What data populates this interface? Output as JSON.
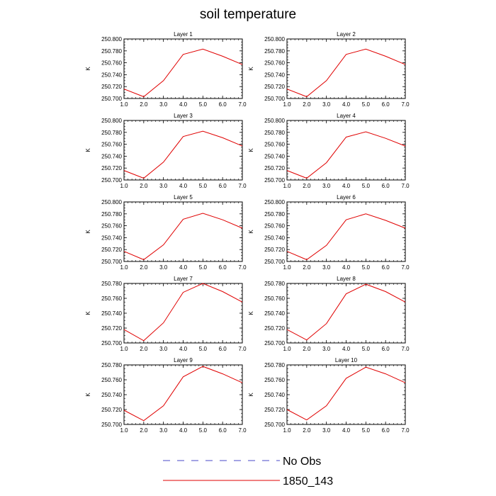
{
  "title": "soil temperature",
  "legend": [
    {
      "label": "No Obs",
      "color": "#4a4ac8",
      "style": "dashed"
    },
    {
      "label": "1850_143",
      "color": "#e00000",
      "style": "solid"
    }
  ],
  "chart_data": [
    {
      "type": "line",
      "title": "Layer 1",
      "xlabel": "",
      "ylabel": "K",
      "xlim": [
        1,
        7
      ],
      "ylim": [
        250.7,
        250.8
      ],
      "xticks": [
        "1.0",
        "2.0",
        "3.0",
        "4.0",
        "5.0",
        "6.0",
        "7.0"
      ],
      "yticks": [
        "250.700",
        "250.720",
        "250.740",
        "250.760",
        "250.780",
        "250.800"
      ],
      "x": [
        1,
        2,
        3,
        4,
        5,
        6,
        7
      ],
      "series": [
        {
          "name": "1850_143",
          "color": "#e00000",
          "values": [
            250.716,
            250.703,
            250.73,
            250.774,
            250.783,
            250.771,
            250.757
          ]
        }
      ]
    },
    {
      "type": "line",
      "title": "Layer 2",
      "xlabel": "",
      "ylabel": "K",
      "xlim": [
        1,
        7
      ],
      "ylim": [
        250.7,
        250.8
      ],
      "xticks": [
        "1.0",
        "2.0",
        "3.0",
        "4.0",
        "5.0",
        "6.0",
        "7.0"
      ],
      "yticks": [
        "250.700",
        "250.720",
        "250.740",
        "250.760",
        "250.780",
        "250.800"
      ],
      "x": [
        1,
        2,
        3,
        4,
        5,
        6,
        7
      ],
      "series": [
        {
          "name": "1850_143",
          "color": "#e00000",
          "values": [
            250.716,
            250.703,
            250.73,
            250.774,
            250.783,
            250.771,
            250.757
          ]
        }
      ]
    },
    {
      "type": "line",
      "title": "Layer 3",
      "xlabel": "",
      "ylabel": "K",
      "xlim": [
        1,
        7
      ],
      "ylim": [
        250.7,
        250.8
      ],
      "xticks": [
        "1.0",
        "2.0",
        "3.0",
        "4.0",
        "5.0",
        "6.0",
        "7.0"
      ],
      "yticks": [
        "250.700",
        "250.720",
        "250.740",
        "250.760",
        "250.780",
        "250.800"
      ],
      "x": [
        1,
        2,
        3,
        4,
        5,
        6,
        7
      ],
      "series": [
        {
          "name": "1850_143",
          "color": "#e00000",
          "values": [
            250.716,
            250.703,
            250.73,
            250.773,
            250.782,
            250.771,
            250.757
          ]
        }
      ]
    },
    {
      "type": "line",
      "title": "Layer 4",
      "xlabel": "",
      "ylabel": "K",
      "xlim": [
        1,
        7
      ],
      "ylim": [
        250.7,
        250.8
      ],
      "xticks": [
        "1.0",
        "2.0",
        "3.0",
        "4.0",
        "5.0",
        "6.0",
        "7.0"
      ],
      "yticks": [
        "250.700",
        "250.720",
        "250.740",
        "250.760",
        "250.780",
        "250.800"
      ],
      "x": [
        1,
        2,
        3,
        4,
        5,
        6,
        7
      ],
      "series": [
        {
          "name": "1850_143",
          "color": "#e00000",
          "values": [
            250.716,
            250.703,
            250.729,
            250.772,
            250.781,
            250.77,
            250.757
          ]
        }
      ]
    },
    {
      "type": "line",
      "title": "Layer 5",
      "xlabel": "",
      "ylabel": "K",
      "xlim": [
        1,
        7
      ],
      "ylim": [
        250.7,
        250.8
      ],
      "xticks": [
        "1.0",
        "2.0",
        "3.0",
        "4.0",
        "5.0",
        "6.0",
        "7.0"
      ],
      "yticks": [
        "250.700",
        "250.720",
        "250.740",
        "250.760",
        "250.780",
        "250.800"
      ],
      "x": [
        1,
        2,
        3,
        4,
        5,
        6,
        7
      ],
      "series": [
        {
          "name": "1850_143",
          "color": "#e00000",
          "values": [
            250.717,
            250.703,
            250.728,
            250.771,
            250.781,
            250.77,
            250.756
          ]
        }
      ]
    },
    {
      "type": "line",
      "title": "Layer 6",
      "xlabel": "",
      "ylabel": "K",
      "xlim": [
        1,
        7
      ],
      "ylim": [
        250.7,
        250.8
      ],
      "xticks": [
        "1.0",
        "2.0",
        "3.0",
        "4.0",
        "5.0",
        "6.0",
        "7.0"
      ],
      "yticks": [
        "250.700",
        "250.720",
        "250.740",
        "250.760",
        "250.780",
        "250.800"
      ],
      "x": [
        1,
        2,
        3,
        4,
        5,
        6,
        7
      ],
      "series": [
        {
          "name": "1850_143",
          "color": "#e00000",
          "values": [
            250.717,
            250.703,
            250.727,
            250.77,
            250.78,
            250.769,
            250.756
          ]
        }
      ]
    },
    {
      "type": "line",
      "title": "Layer 7",
      "xlabel": "",
      "ylabel": "K",
      "xlim": [
        1,
        7
      ],
      "ylim": [
        250.7,
        250.78
      ],
      "xticks": [
        "1.0",
        "2.0",
        "3.0",
        "4.0",
        "5.0",
        "6.0",
        "7.0"
      ],
      "yticks": [
        "250.700",
        "250.720",
        "250.740",
        "250.760",
        "250.780"
      ],
      "x": [
        1,
        2,
        3,
        4,
        5,
        6,
        7
      ],
      "series": [
        {
          "name": "1850_143",
          "color": "#e00000",
          "values": [
            250.718,
            250.703,
            250.727,
            250.768,
            250.78,
            250.769,
            250.755
          ]
        }
      ]
    },
    {
      "type": "line",
      "title": "Layer 8",
      "xlabel": "",
      "ylabel": "K",
      "xlim": [
        1,
        7
      ],
      "ylim": [
        250.7,
        250.78
      ],
      "xticks": [
        "1.0",
        "2.0",
        "3.0",
        "4.0",
        "5.0",
        "6.0",
        "7.0"
      ],
      "yticks": [
        "250.700",
        "250.720",
        "250.740",
        "250.760",
        "250.780"
      ],
      "x": [
        1,
        2,
        3,
        4,
        5,
        6,
        7
      ],
      "series": [
        {
          "name": "1850_143",
          "color": "#e00000",
          "values": [
            250.718,
            250.704,
            250.726,
            250.766,
            250.779,
            250.769,
            250.755
          ]
        }
      ]
    },
    {
      "type": "line",
      "title": "Layer 9",
      "xlabel": "",
      "ylabel": "K",
      "xlim": [
        1,
        7
      ],
      "ylim": [
        250.7,
        250.78
      ],
      "xticks": [
        "1.0",
        "2.0",
        "3.0",
        "4.0",
        "5.0",
        "6.0",
        "7.0"
      ],
      "yticks": [
        "250.700",
        "250.720",
        "250.740",
        "250.760",
        "250.780"
      ],
      "x": [
        1,
        2,
        3,
        4,
        5,
        6,
        7
      ],
      "series": [
        {
          "name": "1850_143",
          "color": "#e00000",
          "values": [
            250.719,
            250.705,
            250.725,
            250.764,
            250.778,
            250.768,
            250.756
          ]
        }
      ]
    },
    {
      "type": "line",
      "title": "Layer 10",
      "xlabel": "",
      "ylabel": "K",
      "xlim": [
        1,
        7
      ],
      "ylim": [
        250.7,
        250.78
      ],
      "xticks": [
        "1.0",
        "2.0",
        "3.0",
        "4.0",
        "5.0",
        "6.0",
        "7.0"
      ],
      "yticks": [
        "250.700",
        "250.720",
        "250.740",
        "250.760",
        "250.780"
      ],
      "x": [
        1,
        2,
        3,
        4,
        5,
        6,
        7
      ],
      "series": [
        {
          "name": "1850_143",
          "color": "#e00000",
          "values": [
            250.72,
            250.706,
            250.725,
            250.762,
            250.777,
            250.768,
            250.756
          ]
        }
      ]
    }
  ]
}
